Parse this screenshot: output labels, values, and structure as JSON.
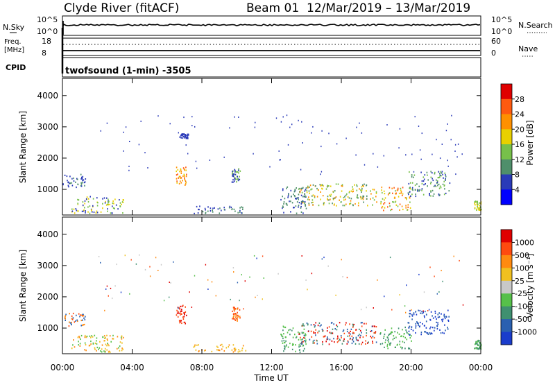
{
  "header": {
    "station": "Clyde River (fitACF)",
    "beam": "Beam 01",
    "date_range": "12/Mar/2019 – 13/Mar/2019"
  },
  "strip_nsky": {
    "left_label": "N.Sky",
    "left_ticks": [
      "10^5",
      "10^0"
    ],
    "right_ticks": [
      "10^5",
      "10^0"
    ],
    "right_label": "N.Search"
  },
  "strip_freq": {
    "left_label_line1": "Freq.",
    "left_label_line2": "[MHz]",
    "left_ticks": [
      "18",
      "8"
    ],
    "right_ticks": [
      "60",
      "0"
    ],
    "right_label": "Nave"
  },
  "strip_cpid": {
    "label": "CPID",
    "value": "twofsound (1-min) -3505"
  },
  "chart_data": [
    {
      "type": "scatter",
      "panel": "power",
      "ylabel": "Slant Range [km]",
      "ylim": [
        180,
        4550
      ],
      "yticks": [
        "1000",
        "2000",
        "3000",
        "4000"
      ],
      "xlim_hours": [
        0,
        24
      ],
      "colorbar": {
        "label": "Power [dB]",
        "ticks": [
          "4",
          "8",
          "12",
          "16",
          "20",
          "24",
          "28"
        ],
        "colors": [
          "#0000ff",
          "#2a3ab8",
          "#4f8f6b",
          "#77c04a",
          "#e8d000",
          "#ff9000",
          "#ff5a10",
          "#e00000"
        ]
      },
      "scatter_regions": [
        {
          "t": [
            0.0,
            1.3
          ],
          "r": [
            1050,
            1500
          ],
          "levels": [
            1,
            2,
            1
          ]
        },
        {
          "t": [
            0.5,
            3.5
          ],
          "r": [
            250,
            800
          ],
          "levels": [
            1,
            3,
            4
          ]
        },
        {
          "t": [
            6.5,
            7.1
          ],
          "r": [
            1150,
            1750
          ],
          "levels": [
            4,
            5,
            6
          ]
        },
        {
          "t": [
            6.7,
            7.2
          ],
          "r": [
            2650,
            2800
          ],
          "levels": [
            1
          ]
        },
        {
          "t": [
            7.5,
            10.5
          ],
          "r": [
            250,
            500
          ],
          "levels": [
            1,
            2
          ]
        },
        {
          "t": [
            9.7,
            10.2
          ],
          "r": [
            1250,
            1700
          ],
          "levels": [
            1,
            3
          ]
        },
        {
          "t": [
            12.5,
            14.0
          ],
          "r": [
            250,
            1100
          ],
          "levels": [
            1,
            2
          ]
        },
        {
          "t": [
            13.5,
            18.0
          ],
          "r": [
            500,
            1200
          ],
          "levels": [
            2,
            3,
            4,
            5
          ]
        },
        {
          "t": [
            18.2,
            20.0
          ],
          "r": [
            350,
            1100
          ],
          "levels": [
            3,
            4,
            5,
            6
          ]
        },
        {
          "t": [
            19.8,
            22.2
          ],
          "r": [
            800,
            1600
          ],
          "levels": [
            1,
            2,
            3
          ]
        },
        {
          "t": [
            23.6,
            24.0
          ],
          "r": [
            350,
            650
          ],
          "levels": [
            3,
            4
          ]
        }
      ]
    },
    {
      "type": "scatter",
      "panel": "velocity",
      "ylabel": "Slant Range [km]",
      "ylim": [
        180,
        4550
      ],
      "yticks": [
        "1000",
        "2000",
        "3000",
        "4000"
      ],
      "xlim_hours": [
        0,
        24
      ],
      "xticks": [
        "00:00",
        "04:00",
        "08:00",
        "12:00",
        "16:00",
        "20:00",
        "00:00"
      ],
      "xlabel": "Time UT",
      "colorbar": {
        "label": "Velocity [m s⁻¹]",
        "ticks": [
          "1000",
          "500",
          "100",
          "25",
          "-25",
          "-100",
          "-500",
          "-1000"
        ],
        "colors": [
          "#1a3ccc",
          "#2a60b0",
          "#3f9070",
          "#56c04a",
          "#c8c8c8",
          "#f0c020",
          "#ff8a10",
          "#ff4a10",
          "#e00000"
        ]
      },
      "scatter_regions": [
        {
          "t": [
            0.0,
            1.3
          ],
          "r": [
            1050,
            1500
          ],
          "levels": [
            1,
            6,
            7
          ]
        },
        {
          "t": [
            0.5,
            3.5
          ],
          "r": [
            250,
            800
          ],
          "levels": [
            3,
            5,
            6
          ]
        },
        {
          "t": [
            6.5,
            7.1
          ],
          "r": [
            1150,
            1750
          ],
          "levels": [
            7,
            8
          ]
        },
        {
          "t": [
            7.5,
            10.5
          ],
          "r": [
            250,
            500
          ],
          "levels": [
            5,
            6
          ]
        },
        {
          "t": [
            9.7,
            10.2
          ],
          "r": [
            1250,
            1700
          ],
          "levels": [
            6,
            7
          ]
        },
        {
          "t": [
            12.5,
            14.0
          ],
          "r": [
            250,
            1100
          ],
          "levels": [
            2,
            3
          ]
        },
        {
          "t": [
            13.5,
            18.0
          ],
          "r": [
            500,
            1200
          ],
          "levels": [
            1,
            2,
            7,
            8
          ]
        },
        {
          "t": [
            18.2,
            20.0
          ],
          "r": [
            350,
            1100
          ],
          "levels": [
            2,
            3
          ]
        },
        {
          "t": [
            19.8,
            22.2
          ],
          "r": [
            800,
            1600
          ],
          "levels": [
            0,
            1
          ]
        },
        {
          "t": [
            23.6,
            24.0
          ],
          "r": [
            350,
            650
          ],
          "levels": [
            2,
            3
          ]
        }
      ]
    }
  ]
}
